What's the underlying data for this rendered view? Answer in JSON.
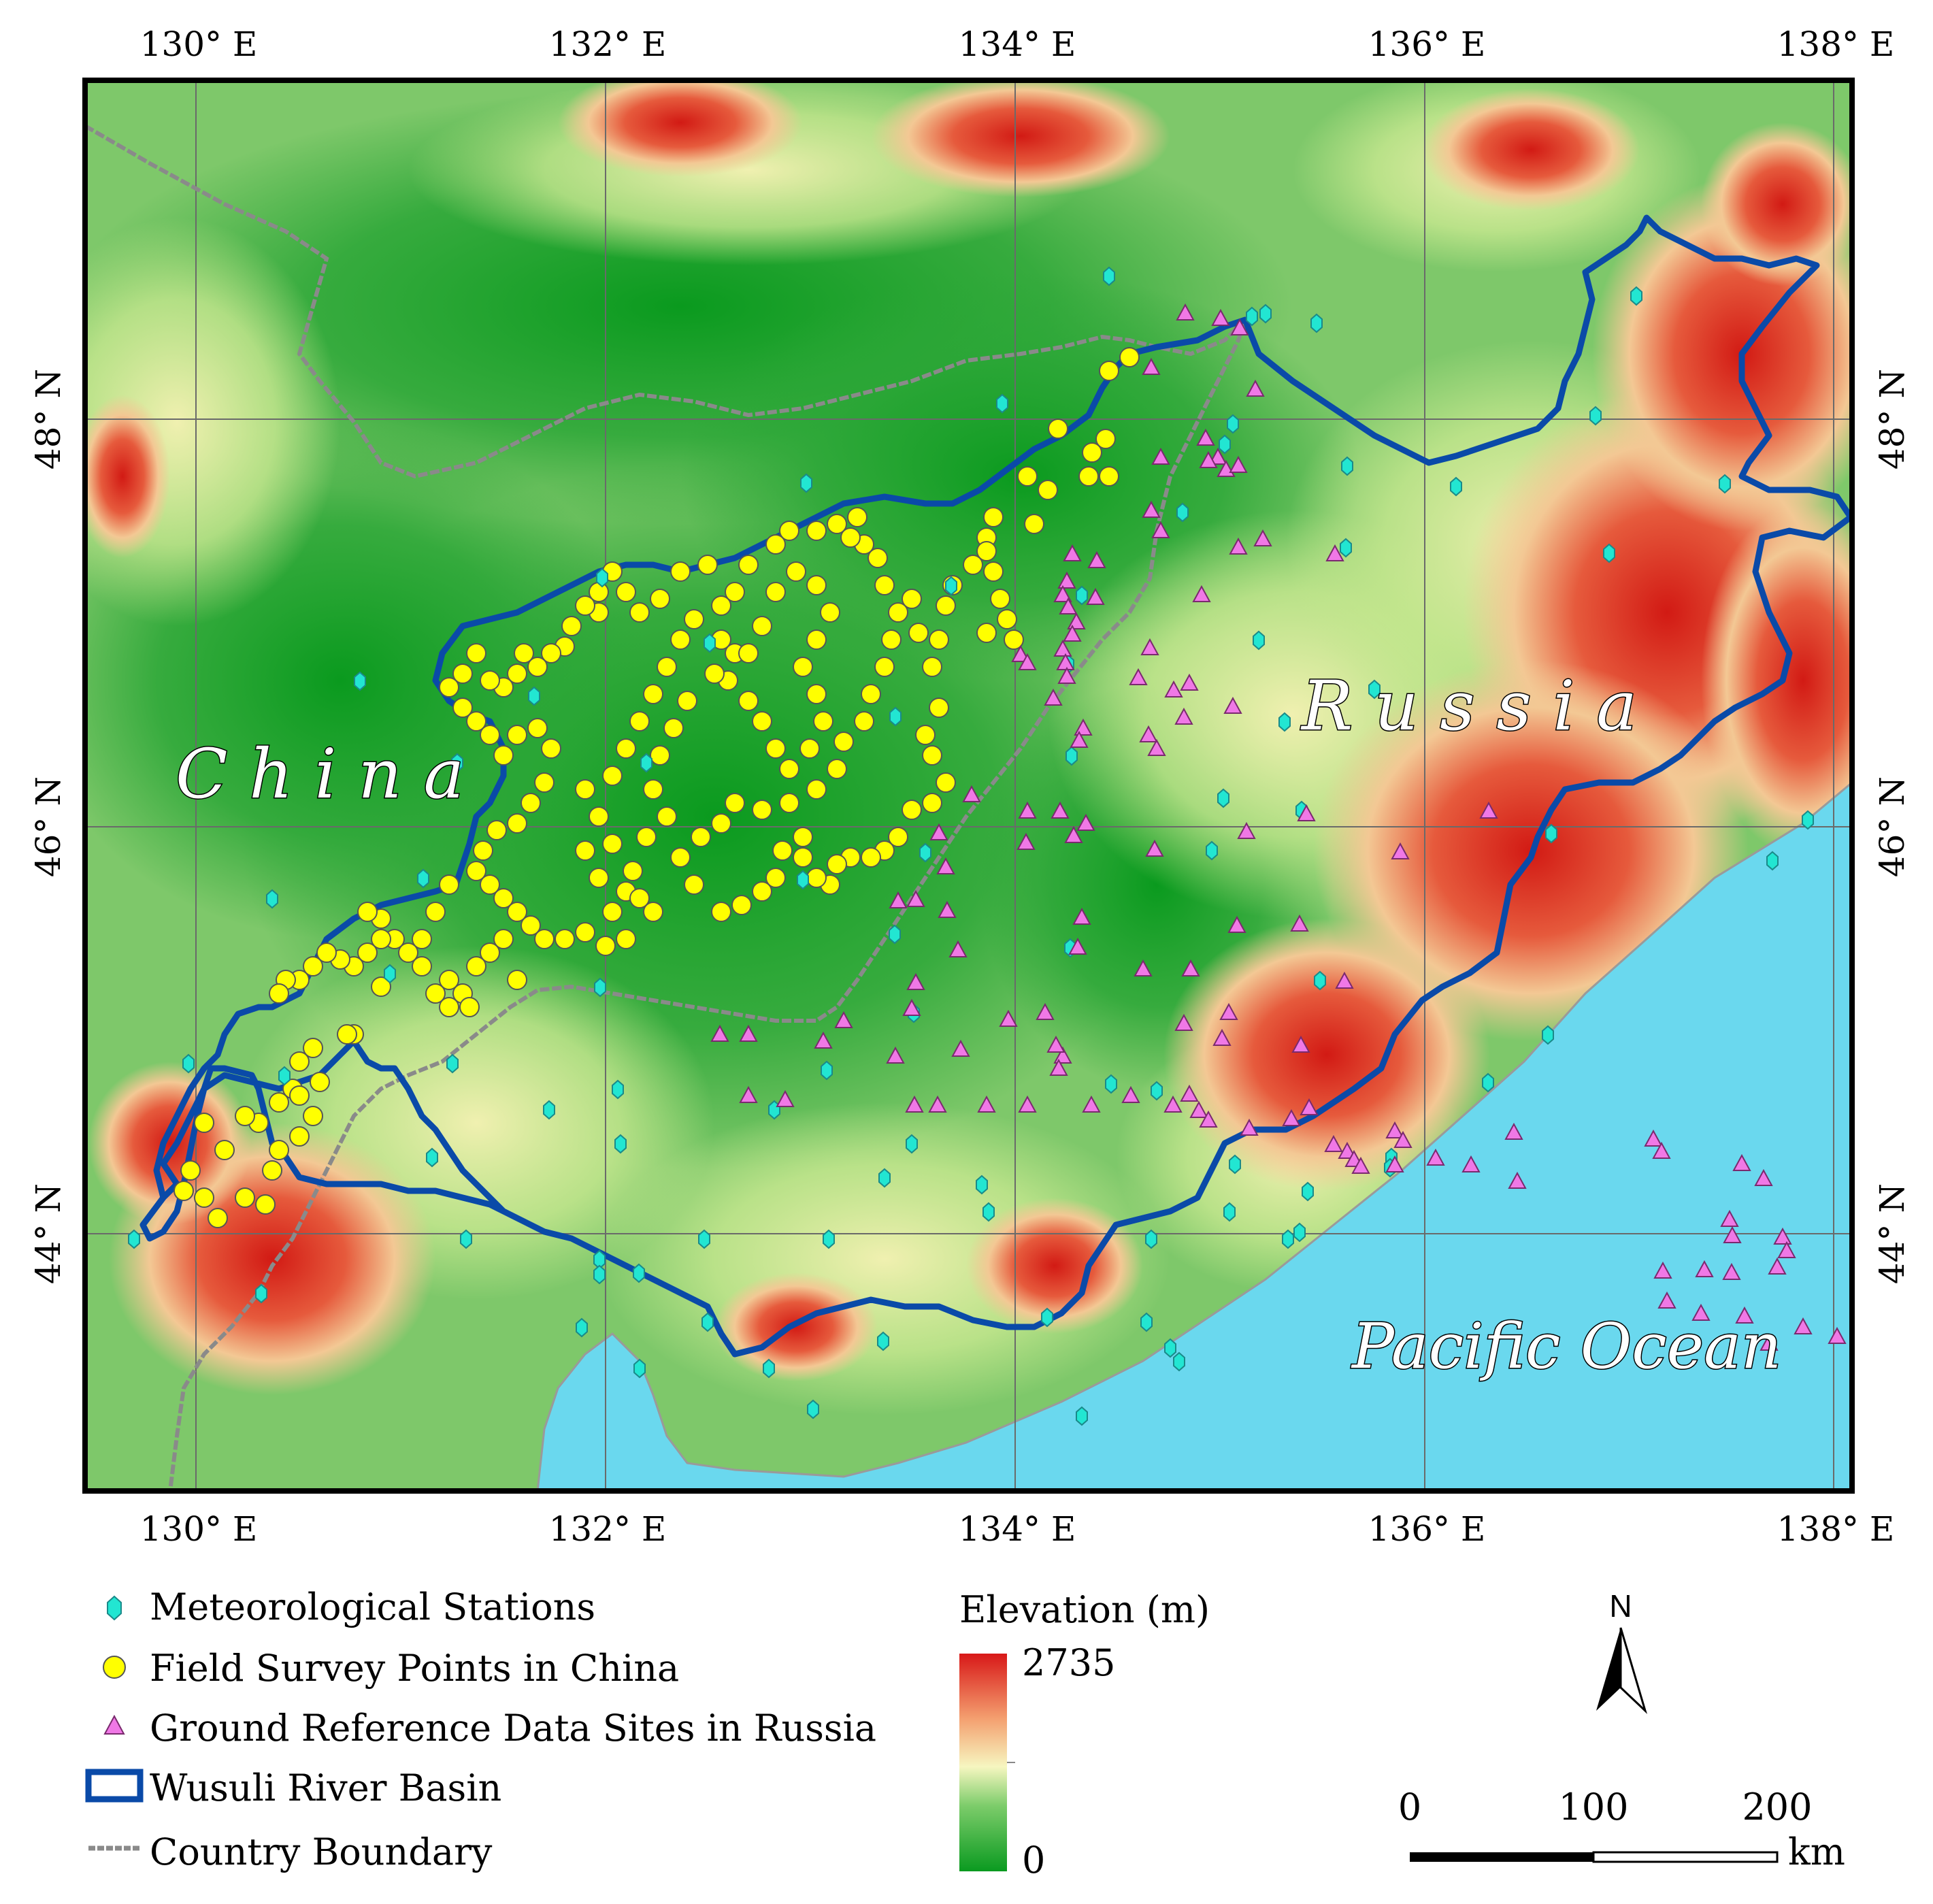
{
  "axes": {
    "lon_ticks_top": [
      "130° E",
      "132° E",
      "134° E",
      "136° E",
      "138° E"
    ],
    "lon_ticks_bottom": [
      "130° E",
      "132° E",
      "134° E",
      "136° E",
      "138° E"
    ],
    "lat_ticks_left": [
      "48° N",
      "46° N",
      "44° N"
    ],
    "lat_ticks_right": [
      "48° N",
      "46° N",
      "44° N"
    ]
  },
  "labels": {
    "china": "C h i n a",
    "russia": "R u s s i a",
    "ocean": "Pacific Ocean"
  },
  "legend": {
    "met_stations": "Meteorological Stations",
    "field_points": "Field Survey Points in China",
    "ground_sites": "Ground Reference Data Sites in Russia",
    "basin": "Wusuli River Basin",
    "boundary": "Country Boundary"
  },
  "elevation": {
    "title": "Elevation (m)",
    "max": "2735",
    "min": "0"
  },
  "north_arrow": "N",
  "scale_bar": {
    "ticks": [
      "0",
      "100",
      "200"
    ],
    "unit": "km"
  },
  "colors": {
    "met_station": "#22e6d2",
    "field_point": "#ffff00",
    "ground_site": "#f078e6",
    "basin_outline": "#0a4aa8",
    "country_boundary": "#8a8a8a",
    "ocean": "#6ad8ee",
    "elev_low": "#0a9a20",
    "elev_mid": "#f6f6c0",
    "elev_high": "#d81818"
  }
}
